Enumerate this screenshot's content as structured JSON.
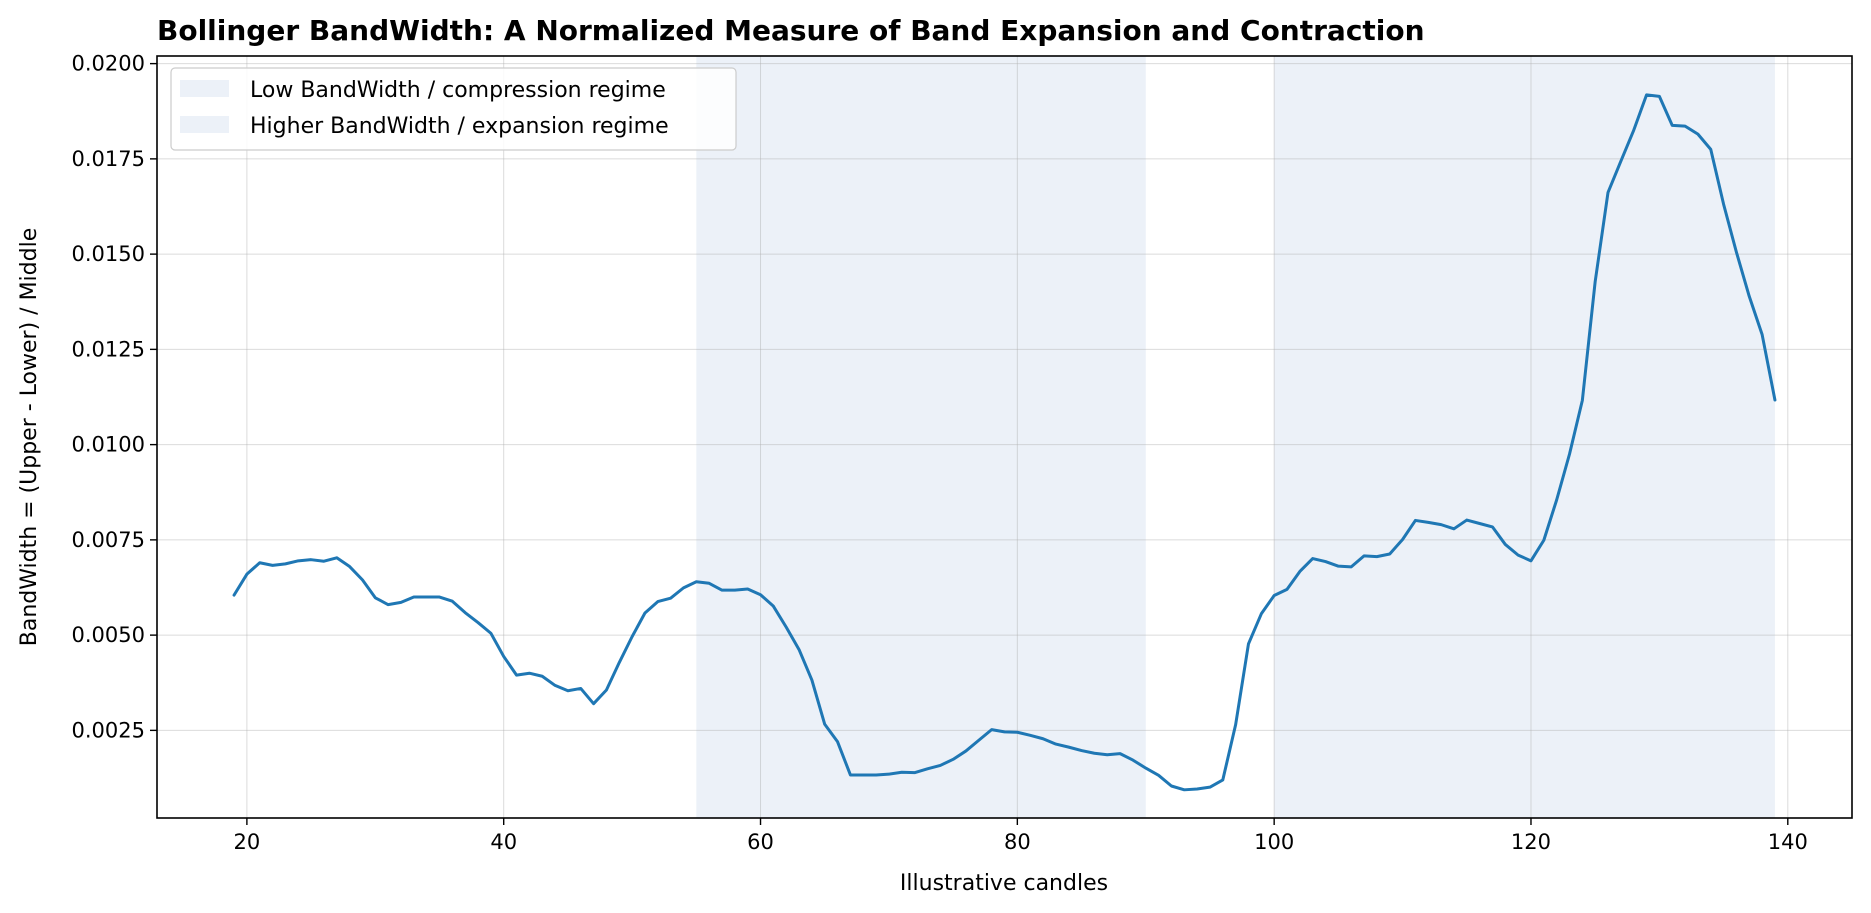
{
  "chart_data": {
    "type": "line",
    "title": "Bollinger BandWidth: A Normalized Measure of Band Expansion and Contraction",
    "xlabel": "Illustrative candles",
    "ylabel": "BandWidth = (Upper - Lower) / Middle",
    "xlim": [
      13,
      145
    ],
    "ylim": [
      0.0002,
      0.0202
    ],
    "x_ticks": [
      20,
      40,
      60,
      80,
      100,
      120,
      140
    ],
    "x_tick_labels": [
      "20",
      "40",
      "60",
      "80",
      "100",
      "120",
      "140"
    ],
    "y_ticks": [
      0.0025,
      0.005,
      0.0075,
      0.01,
      0.0125,
      0.015,
      0.0175,
      0.02
    ],
    "y_tick_labels": [
      "0.0025",
      "0.0050",
      "0.0075",
      "0.0100",
      "0.0125",
      "0.0150",
      "0.0175",
      "0.0200"
    ],
    "grid": true,
    "legend_position": "upper-left",
    "regions": [
      {
        "name": "Low BandWidth / compression regime",
        "x_start": 55,
        "x_end": 90,
        "color": "#dce6f2"
      },
      {
        "name": "Higher BandWidth / expansion regime",
        "x_start": 100,
        "x_end": 139,
        "color": "#dce6f2"
      }
    ],
    "series": [
      {
        "color": "#1f77b4",
        "x": [
          19,
          20,
          21,
          22,
          23,
          24,
          25,
          26,
          27,
          28,
          29,
          30,
          31,
          32,
          33,
          34,
          35,
          36,
          37,
          38,
          39,
          40,
          41,
          42,
          43,
          44,
          45,
          46,
          47,
          48,
          49,
          50,
          51,
          52,
          53,
          54,
          55,
          56,
          57,
          58,
          59,
          60,
          61,
          62,
          63,
          64,
          65,
          66,
          67,
          68,
          69,
          70,
          71,
          72,
          73,
          74,
          75,
          76,
          77,
          78,
          79,
          80,
          81,
          82,
          83,
          84,
          85,
          86,
          87,
          88,
          89,
          90,
          91,
          92,
          93,
          94,
          95,
          96,
          97,
          98,
          99,
          100,
          101,
          102,
          103,
          104,
          105,
          106,
          107,
          108,
          109,
          110,
          111,
          112,
          113,
          114,
          115,
          116,
          117,
          118,
          119,
          120,
          121,
          122,
          123,
          124,
          125,
          126,
          127,
          128,
          129,
          130,
          131,
          132,
          133,
          134,
          135,
          136,
          137,
          138,
          139
        ],
        "values": [
          0.00605,
          0.0066,
          0.0069,
          0.00683,
          0.00687,
          0.00695,
          0.00698,
          0.00694,
          0.00703,
          0.0068,
          0.00645,
          0.00598,
          0.0058,
          0.00586,
          0.006,
          0.006,
          0.006,
          0.00589,
          0.00559,
          0.00533,
          0.00505,
          0.00444,
          0.00395,
          0.004,
          0.00392,
          0.00368,
          0.00354,
          0.0036,
          0.0032,
          0.00356,
          0.00428,
          0.00496,
          0.00558,
          0.00588,
          0.00597,
          0.00624,
          0.0064,
          0.00636,
          0.00618,
          0.00618,
          0.00621,
          0.00606,
          0.00576,
          0.00521,
          0.00462,
          0.00382,
          0.00266,
          0.0022,
          0.00133,
          0.00133,
          0.00133,
          0.00135,
          0.0014,
          0.00139,
          0.00149,
          0.00158,
          0.00174,
          0.00196,
          0.00224,
          0.00252,
          0.00246,
          0.00245,
          0.00237,
          0.00228,
          0.00214,
          0.00206,
          0.00197,
          0.0019,
          0.00186,
          0.00189,
          0.00172,
          0.00151,
          0.00132,
          0.00104,
          0.00094,
          0.00096,
          0.00101,
          0.0012,
          0.00265,
          0.00477,
          0.00556,
          0.00604,
          0.0062,
          0.00667,
          0.00701,
          0.00693,
          0.00681,
          0.00679,
          0.00708,
          0.00706,
          0.00713,
          0.00751,
          0.00801,
          0.00796,
          0.0079,
          0.00779,
          0.00802,
          0.00793,
          0.00784,
          0.00738,
          0.0071,
          0.00695,
          0.00749,
          0.00855,
          0.00975,
          0.01116,
          0.01428,
          0.01662,
          0.01744,
          0.01825,
          0.01918,
          0.01914,
          0.01838,
          0.01836,
          0.01815,
          0.01775,
          0.01631,
          0.01505,
          0.01389,
          0.01289,
          0.01117
        ]
      }
    ]
  }
}
